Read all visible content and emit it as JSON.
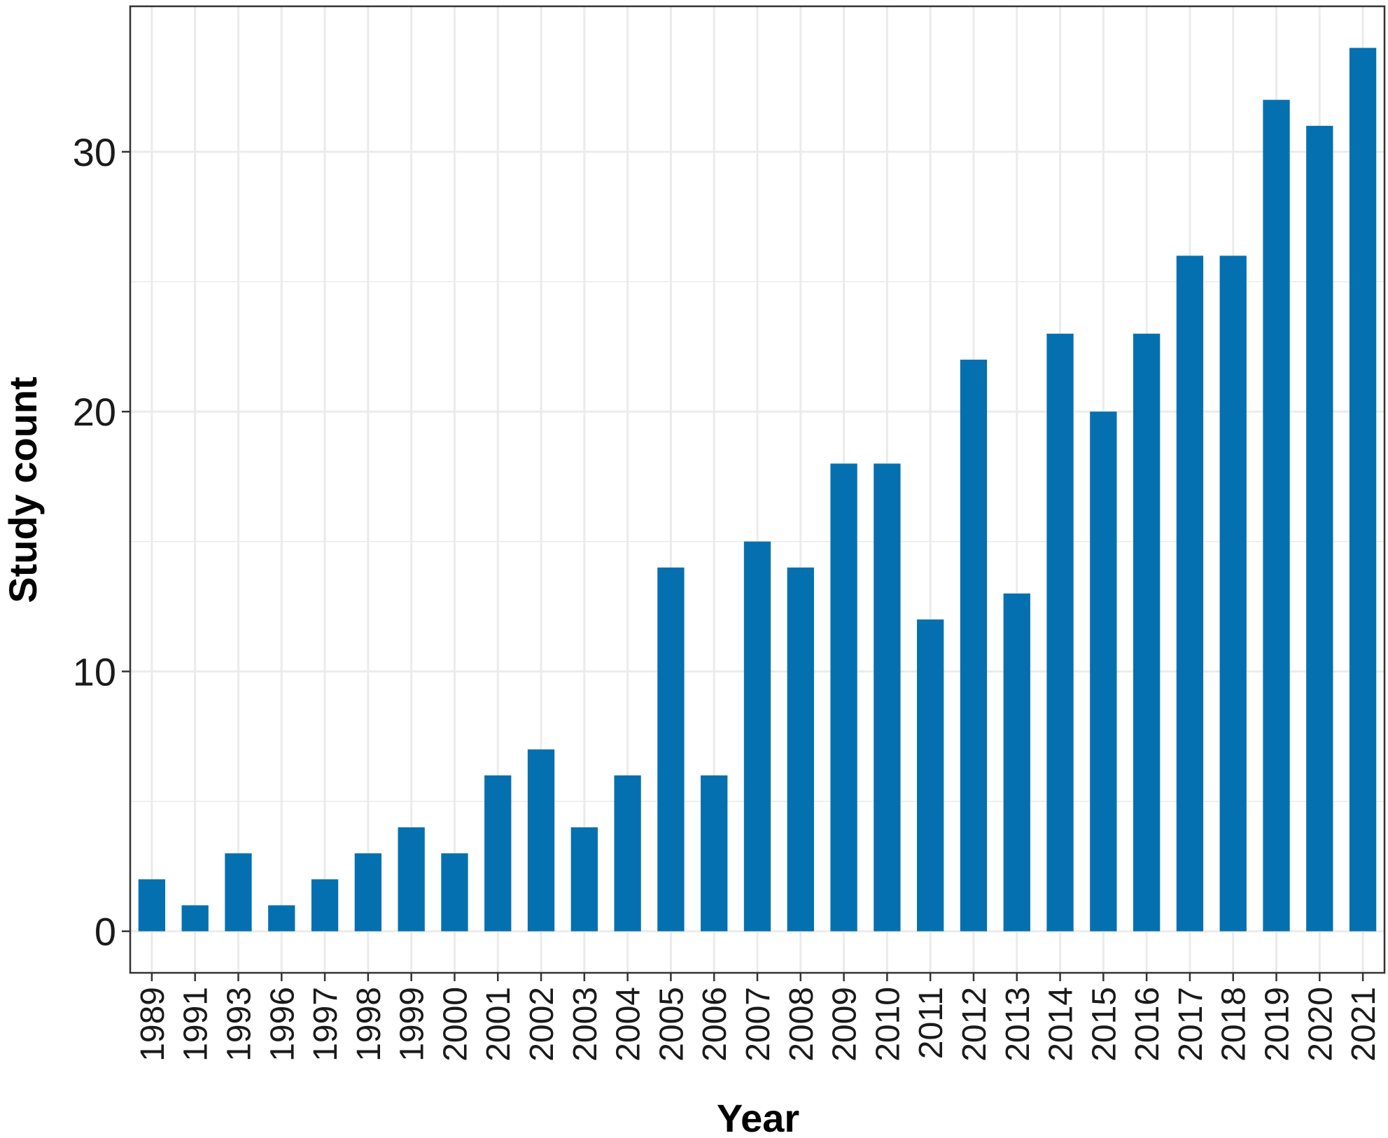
{
  "chart_data": {
    "type": "bar",
    "title": "",
    "xlabel": "Year",
    "ylabel": "Study count",
    "categories": [
      "1989",
      "1991",
      "1993",
      "1996",
      "1997",
      "1998",
      "1999",
      "2000",
      "2001",
      "2002",
      "2003",
      "2004",
      "2005",
      "2006",
      "2007",
      "2008",
      "2009",
      "2010",
      "2011",
      "2012",
      "2013",
      "2014",
      "2015",
      "2016",
      "2017",
      "2018",
      "2019",
      "2020",
      "2021"
    ],
    "values": [
      2,
      1,
      3,
      1,
      2,
      3,
      4,
      3,
      6,
      7,
      4,
      6,
      14,
      6,
      15,
      14,
      18,
      18,
      12,
      22,
      13,
      23,
      20,
      23,
      26,
      26,
      32,
      31,
      34
    ],
    "ylim": [
      -1.6,
      35.6
    ],
    "yticks": [
      0,
      10,
      20,
      30
    ],
    "grid": true,
    "legend": "none",
    "bar_color": "#0570b0",
    "grid_color": "#ebebeb",
    "panel_border_color": "#333333"
  }
}
